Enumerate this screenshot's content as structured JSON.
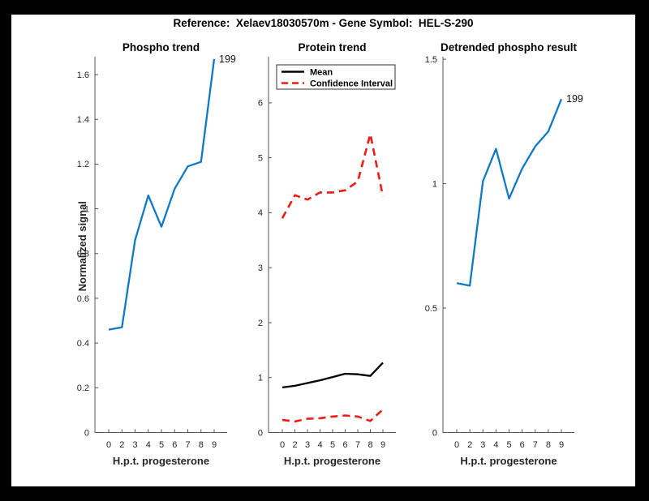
{
  "figure_title": "Reference:  Xelaev18030570m - Gene Symbol:  HEL-S-290",
  "colors": {
    "blue": "#0f79c5",
    "red": "#ee1b12",
    "black": "#000000",
    "axis": "#555555",
    "tick_label": "#262626",
    "background": "#ffffff",
    "frame": "#000000"
  },
  "chart_data": [
    {
      "type": "line",
      "title": "Phospho trend",
      "xlabel": "H.p.t. progesterone",
      "ylabel": "Normalized signal",
      "categories": [
        "0",
        "2",
        "3",
        "4",
        "5",
        "6",
        "7",
        "8",
        "9"
      ],
      "ylim": [
        0,
        1.68
      ],
      "yticks": [
        0,
        0.2,
        0.4,
        0.6,
        0.8,
        1,
        1.2,
        1.4,
        1.6
      ],
      "ytick_labels": [
        "0",
        "0.2",
        "0.4",
        "0.6",
        "0.8",
        "1",
        "1.2",
        "1.4",
        "1.6"
      ],
      "grid": false,
      "series": [
        {
          "name": "phospho signal",
          "color": "blue",
          "style": "solid",
          "values": [
            0.46,
            0.47,
            0.86,
            1.06,
            0.92,
            1.09,
            1.19,
            1.21,
            1.67
          ]
        }
      ],
      "end_label": "199"
    },
    {
      "type": "line",
      "title": "Protein trend",
      "xlabel": "H.p.t. progesterone",
      "ylabel": "",
      "categories": [
        "0",
        "2",
        "3",
        "4",
        "5",
        "6",
        "7",
        "8",
        "9"
      ],
      "ylim": [
        0,
        6.84
      ],
      "yticks": [
        0,
        1,
        2,
        3,
        4,
        5,
        6
      ],
      "ytick_labels": [
        "0",
        "1",
        "2",
        "3",
        "4",
        "5",
        "6"
      ],
      "grid": false,
      "series": [
        {
          "name": "Mean",
          "color": "black",
          "style": "solid",
          "values": [
            0.82,
            0.85,
            0.9,
            0.95,
            1.01,
            1.07,
            1.06,
            1.03,
            1.27
          ]
        },
        {
          "name": "Confidence Interval upper",
          "color": "red",
          "style": "dashed",
          "values": [
            3.9,
            4.32,
            4.24,
            4.37,
            4.37,
            4.41,
            4.57,
            5.43,
            4.3
          ]
        },
        {
          "name": "Confidence Interval lower",
          "color": "red",
          "style": "dashed",
          "values": [
            0.23,
            0.2,
            0.25,
            0.26,
            0.29,
            0.31,
            0.29,
            0.21,
            0.42
          ]
        }
      ],
      "legend": {
        "position": "top-right",
        "entries": [
          {
            "label": "Mean",
            "color": "black",
            "style": "solid"
          },
          {
            "label": "Confidence Interval",
            "color": "red",
            "style": "dashed"
          }
        ]
      }
    },
    {
      "type": "line",
      "title": "Detrended phospho result",
      "xlabel": "H.p.t. progesterone",
      "ylabel": "",
      "categories": [
        "0",
        "2",
        "3",
        "4",
        "5",
        "6",
        "7",
        "8",
        "9"
      ],
      "ylim": [
        0,
        1.51
      ],
      "yticks": [
        0,
        0.5,
        1,
        1.5
      ],
      "ytick_labels": [
        "0",
        "0.5",
        "1",
        "1.5"
      ],
      "grid": false,
      "series": [
        {
          "name": "detrended phospho signal",
          "color": "blue",
          "style": "solid",
          "values": [
            0.6,
            0.59,
            1.01,
            1.14,
            0.94,
            1.06,
            1.15,
            1.21,
            1.34
          ]
        }
      ],
      "end_label": "199"
    }
  ]
}
